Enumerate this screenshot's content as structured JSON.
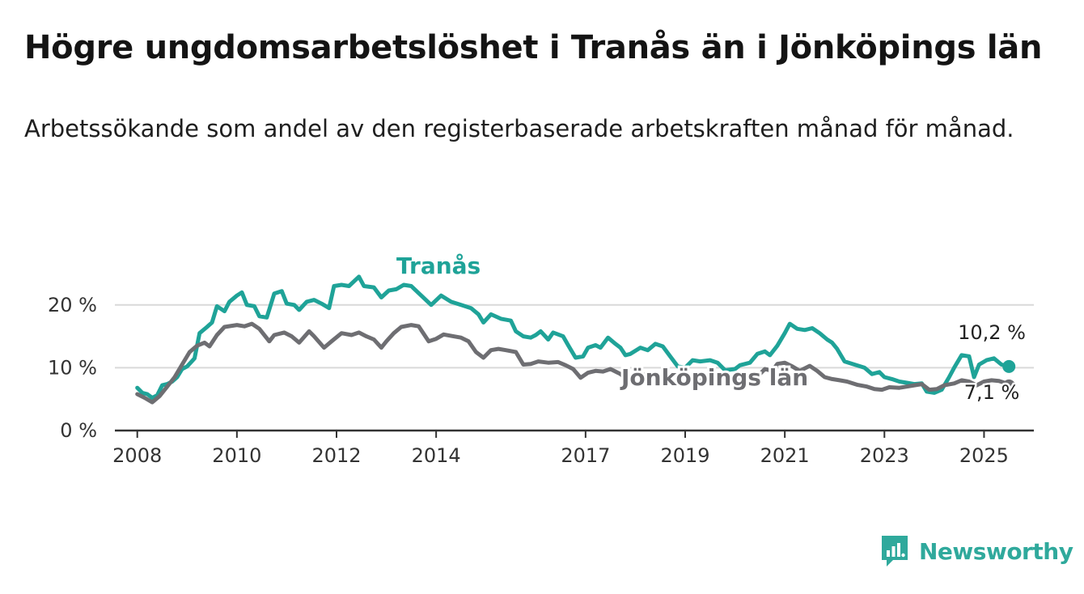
{
  "title": "Högre ungdomsarbetslöshet i Tranås än i Jönköpings län",
  "subtitle": "Arbetssökande som andel av den registerbaserade arbetskraften månad för månad.",
  "brand": {
    "name": "Newsworthy",
    "icon": "newsworthy-logo-icon",
    "color": "#2fa99c"
  },
  "chart_data": {
    "type": "line",
    "title": "Högre ungdomsarbetslöshet i Tranås än i Jönköpings län",
    "subtitle": "Arbetssökande som andel av den registerbaserade arbetskraften månad för månad.",
    "xlabel": "",
    "ylabel": "",
    "xlim": [
      2007.55,
      2026.0
    ],
    "ylim": [
      0,
      25
    ],
    "x_ticks": [
      2008,
      2010,
      2012,
      2014,
      2017,
      2019,
      2021,
      2023,
      2025
    ],
    "x_tick_labels": [
      "2008",
      "2010",
      "2012",
      "2014",
      "2017",
      "2019",
      "2021",
      "2023",
      "2025"
    ],
    "y_ticks": [
      0,
      10,
      20
    ],
    "y_tick_labels": [
      "0 %",
      "10 %",
      "20 %"
    ],
    "grid": "horizontal",
    "legend": "direct labels",
    "series": [
      {
        "name": "Tranås",
        "color": "#1fa398",
        "end_label": "10,2 %",
        "points": [
          [
            2008.0,
            6.8
          ],
          [
            2008.1,
            6.0
          ],
          [
            2008.2,
            5.8
          ],
          [
            2008.3,
            5.2
          ],
          [
            2008.4,
            5.6
          ],
          [
            2008.5,
            7.2
          ],
          [
            2008.6,
            7.4
          ],
          [
            2008.7,
            7.8
          ],
          [
            2008.8,
            8.5
          ],
          [
            2008.9,
            9.8
          ],
          [
            2009.0,
            10.2
          ],
          [
            2009.15,
            11.5
          ],
          [
            2009.25,
            15.5
          ],
          [
            2009.4,
            16.5
          ],
          [
            2009.5,
            17.2
          ],
          [
            2009.6,
            19.8
          ],
          [
            2009.75,
            19.0
          ],
          [
            2009.85,
            20.5
          ],
          [
            2010.0,
            21.5
          ],
          [
            2010.1,
            22.0
          ],
          [
            2010.2,
            20.0
          ],
          [
            2010.35,
            19.8
          ],
          [
            2010.45,
            18.2
          ],
          [
            2010.6,
            18.0
          ],
          [
            2010.75,
            21.8
          ],
          [
            2010.9,
            22.2
          ],
          [
            2011.0,
            20.2
          ],
          [
            2011.15,
            20.0
          ],
          [
            2011.25,
            19.2
          ],
          [
            2011.4,
            20.5
          ],
          [
            2011.55,
            20.8
          ],
          [
            2011.7,
            20.2
          ],
          [
            2011.85,
            19.5
          ],
          [
            2011.95,
            23.0
          ],
          [
            2012.1,
            23.2
          ],
          [
            2012.25,
            23.0
          ],
          [
            2012.45,
            24.5
          ],
          [
            2012.55,
            23.0
          ],
          [
            2012.75,
            22.8
          ],
          [
            2012.9,
            21.2
          ],
          [
            2013.05,
            22.3
          ],
          [
            2013.2,
            22.5
          ],
          [
            2013.35,
            23.2
          ],
          [
            2013.5,
            23.0
          ],
          [
            2013.7,
            21.5
          ],
          [
            2013.9,
            20.0
          ],
          [
            2014.1,
            21.5
          ],
          [
            2014.3,
            20.5
          ],
          [
            2014.5,
            20.0
          ],
          [
            2014.7,
            19.5
          ],
          [
            2014.85,
            18.5
          ],
          [
            2014.95,
            17.2
          ],
          [
            2015.1,
            18.5
          ],
          [
            2015.3,
            17.8
          ],
          [
            2015.5,
            17.5
          ],
          [
            2015.6,
            15.8
          ],
          [
            2015.75,
            15.0
          ],
          [
            2015.9,
            14.8
          ],
          [
            2016.0,
            15.2
          ],
          [
            2016.1,
            15.8
          ],
          [
            2016.25,
            14.5
          ],
          [
            2016.35,
            15.6
          ],
          [
            2016.55,
            15.0
          ],
          [
            2016.65,
            13.6
          ],
          [
            2016.8,
            11.6
          ],
          [
            2016.95,
            11.8
          ],
          [
            2017.05,
            13.2
          ],
          [
            2017.2,
            13.6
          ],
          [
            2017.3,
            13.2
          ],
          [
            2017.45,
            14.8
          ],
          [
            2017.6,
            13.8
          ],
          [
            2017.7,
            13.2
          ],
          [
            2017.8,
            12.0
          ],
          [
            2017.9,
            12.2
          ],
          [
            2018.1,
            13.2
          ],
          [
            2018.25,
            12.8
          ],
          [
            2018.4,
            13.8
          ],
          [
            2018.55,
            13.4
          ],
          [
            2018.7,
            11.8
          ],
          [
            2018.85,
            10.2
          ],
          [
            2019.0,
            10.0
          ],
          [
            2019.15,
            11.2
          ],
          [
            2019.3,
            11.0
          ],
          [
            2019.5,
            11.2
          ],
          [
            2019.65,
            10.8
          ],
          [
            2019.8,
            9.6
          ],
          [
            2020.0,
            9.8
          ],
          [
            2020.1,
            10.4
          ],
          [
            2020.3,
            10.8
          ],
          [
            2020.45,
            12.2
          ],
          [
            2020.6,
            12.6
          ],
          [
            2020.7,
            12.0
          ],
          [
            2020.85,
            13.5
          ],
          [
            2021.0,
            15.5
          ],
          [
            2021.1,
            17.0
          ],
          [
            2021.25,
            16.2
          ],
          [
            2021.4,
            16.0
          ],
          [
            2021.55,
            16.3
          ],
          [
            2021.7,
            15.5
          ],
          [
            2021.85,
            14.5
          ],
          [
            2021.95,
            14.0
          ],
          [
            2022.05,
            13.0
          ],
          [
            2022.2,
            11.0
          ],
          [
            2022.4,
            10.5
          ],
          [
            2022.6,
            10.0
          ],
          [
            2022.75,
            9.0
          ],
          [
            2022.9,
            9.3
          ],
          [
            2023.0,
            8.5
          ],
          [
            2023.15,
            8.2
          ],
          [
            2023.3,
            7.8
          ],
          [
            2023.45,
            7.6
          ],
          [
            2023.6,
            7.4
          ],
          [
            2023.75,
            7.5
          ],
          [
            2023.85,
            6.2
          ],
          [
            2024.0,
            6.0
          ],
          [
            2024.15,
            6.5
          ],
          [
            2024.3,
            8.5
          ],
          [
            2024.4,
            10.0
          ],
          [
            2024.55,
            12.0
          ],
          [
            2024.7,
            11.8
          ],
          [
            2024.8,
            8.5
          ],
          [
            2024.9,
            10.5
          ],
          [
            2025.05,
            11.2
          ],
          [
            2025.2,
            11.5
          ],
          [
            2025.35,
            10.5
          ],
          [
            2025.5,
            10.2
          ]
        ]
      },
      {
        "name": "Jönköpings län",
        "color": "#6e6e72",
        "end_label": "7,1 %",
        "points": [
          [
            2008.0,
            5.8
          ],
          [
            2008.15,
            5.2
          ],
          [
            2008.3,
            4.5
          ],
          [
            2008.45,
            5.5
          ],
          [
            2008.6,
            7.0
          ],
          [
            2008.75,
            8.5
          ],
          [
            2008.9,
            10.5
          ],
          [
            2009.05,
            12.5
          ],
          [
            2009.2,
            13.5
          ],
          [
            2009.35,
            14.0
          ],
          [
            2009.45,
            13.4
          ],
          [
            2009.6,
            15.2
          ],
          [
            2009.75,
            16.5
          ],
          [
            2010.0,
            16.8
          ],
          [
            2010.15,
            16.6
          ],
          [
            2010.3,
            17.0
          ],
          [
            2010.45,
            16.2
          ],
          [
            2010.65,
            14.2
          ],
          [
            2010.75,
            15.2
          ],
          [
            2010.95,
            15.6
          ],
          [
            2011.1,
            15.0
          ],
          [
            2011.25,
            14.0
          ],
          [
            2011.45,
            15.8
          ],
          [
            2011.55,
            15.0
          ],
          [
            2011.75,
            13.2
          ],
          [
            2011.9,
            14.2
          ],
          [
            2012.1,
            15.5
          ],
          [
            2012.3,
            15.2
          ],
          [
            2012.45,
            15.6
          ],
          [
            2012.6,
            15.0
          ],
          [
            2012.75,
            14.5
          ],
          [
            2012.9,
            13.2
          ],
          [
            2013.0,
            14.2
          ],
          [
            2013.15,
            15.5
          ],
          [
            2013.3,
            16.5
          ],
          [
            2013.5,
            16.8
          ],
          [
            2013.65,
            16.6
          ],
          [
            2013.85,
            14.2
          ],
          [
            2014.0,
            14.6
          ],
          [
            2014.15,
            15.3
          ],
          [
            2014.35,
            15.0
          ],
          [
            2014.5,
            14.8
          ],
          [
            2014.65,
            14.2
          ],
          [
            2014.8,
            12.5
          ],
          [
            2014.95,
            11.6
          ],
          [
            2015.1,
            12.8
          ],
          [
            2015.25,
            13.0
          ],
          [
            2015.4,
            12.8
          ],
          [
            2015.6,
            12.5
          ],
          [
            2015.75,
            10.5
          ],
          [
            2015.9,
            10.6
          ],
          [
            2016.05,
            11.0
          ],
          [
            2016.25,
            10.8
          ],
          [
            2016.45,
            10.9
          ],
          [
            2016.6,
            10.4
          ],
          [
            2016.75,
            9.8
          ],
          [
            2016.9,
            8.4
          ],
          [
            2017.05,
            9.2
          ],
          [
            2017.2,
            9.5
          ],
          [
            2017.35,
            9.4
          ],
          [
            2017.5,
            9.8
          ],
          [
            2017.7,
            9.0
          ],
          [
            2017.85,
            8.0
          ],
          [
            2018.0,
            8.6
          ],
          [
            2018.15,
            8.9
          ],
          [
            2018.3,
            8.7
          ],
          [
            2018.5,
            8.5
          ],
          [
            2018.7,
            7.7
          ],
          [
            2018.9,
            7.5
          ],
          [
            2019.1,
            7.8
          ],
          [
            2019.3,
            8.0
          ],
          [
            2019.5,
            7.9
          ],
          [
            2019.7,
            7.6
          ],
          [
            2019.9,
            7.7
          ],
          [
            2020.1,
            8.0
          ],
          [
            2020.3,
            8.6
          ],
          [
            2020.45,
            8.6
          ],
          [
            2020.6,
            9.8
          ],
          [
            2020.75,
            9.5
          ],
          [
            2020.85,
            10.6
          ],
          [
            2021.0,
            10.8
          ],
          [
            2021.15,
            10.2
          ],
          [
            2021.3,
            9.5
          ],
          [
            2021.5,
            10.3
          ],
          [
            2021.65,
            9.5
          ],
          [
            2021.8,
            8.5
          ],
          [
            2021.95,
            8.2
          ],
          [
            2022.1,
            8.0
          ],
          [
            2022.25,
            7.8
          ],
          [
            2022.45,
            7.3
          ],
          [
            2022.65,
            7.0
          ],
          [
            2022.8,
            6.6
          ],
          [
            2022.95,
            6.5
          ],
          [
            2023.1,
            6.9
          ],
          [
            2023.3,
            6.8
          ],
          [
            2023.45,
            7.0
          ],
          [
            2023.6,
            7.2
          ],
          [
            2023.75,
            7.4
          ],
          [
            2023.9,
            6.5
          ],
          [
            2024.05,
            6.6
          ],
          [
            2024.2,
            7.2
          ],
          [
            2024.4,
            7.5
          ],
          [
            2024.55,
            8.0
          ],
          [
            2024.7,
            7.8
          ],
          [
            2024.85,
            7.2
          ],
          [
            2025.0,
            7.8
          ],
          [
            2025.15,
            8.0
          ],
          [
            2025.3,
            7.9
          ],
          [
            2025.45,
            7.5
          ],
          [
            2025.5,
            7.1
          ]
        ]
      }
    ]
  }
}
